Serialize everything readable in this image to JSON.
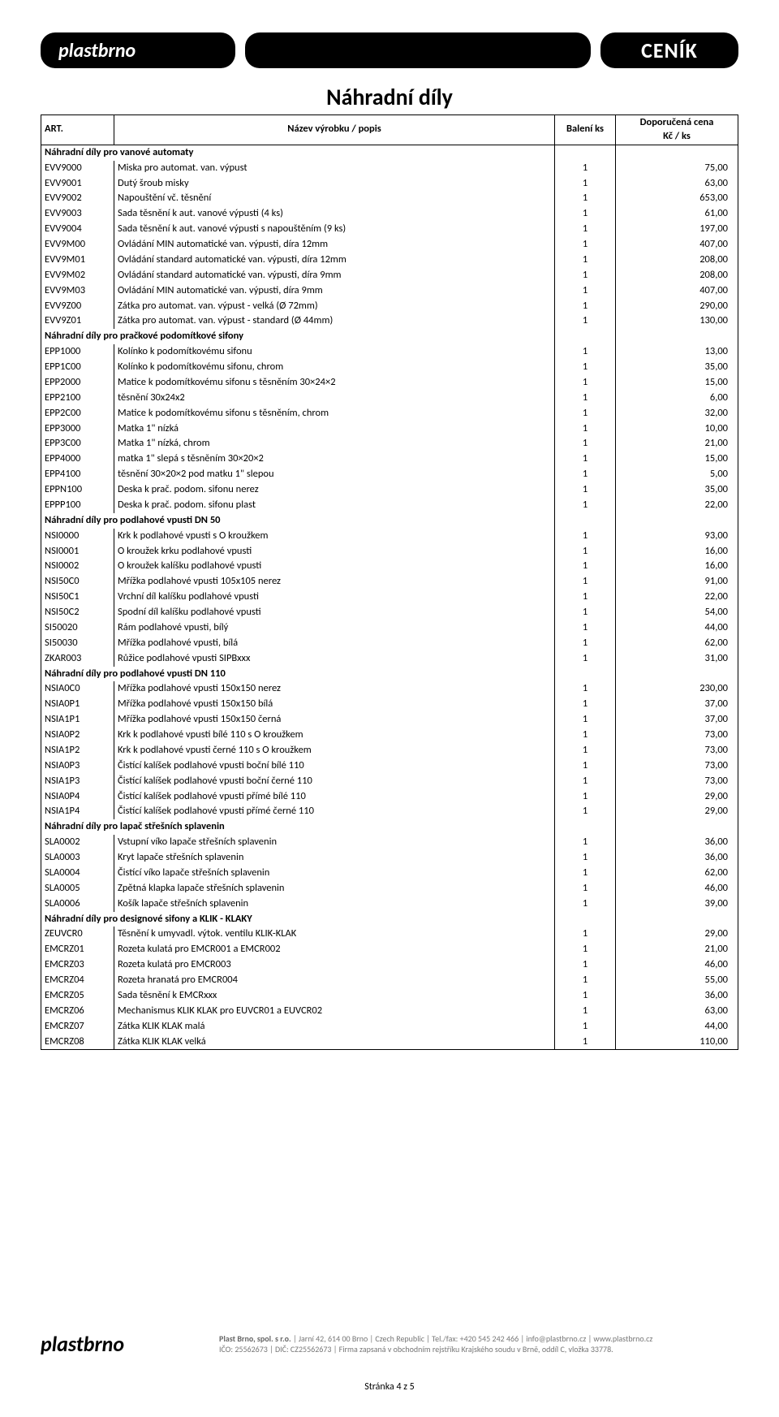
{
  "header": {
    "brand": "plastbrno",
    "badge": "CENÍK"
  },
  "doc_title": "Náhradní díly",
  "columns": {
    "art": "ART.",
    "name": "Název výrobku / popis",
    "pack": "Balení ks",
    "price_l1": "Doporučená cena",
    "price_l2": "Kč / ks"
  },
  "sections": [
    {
      "title": "Náhradní díly pro vanové automaty",
      "rows": [
        {
          "a": "EVV9000",
          "n": "Miska pro automat. van. výpust",
          "p": "1",
          "c": "75,00"
        },
        {
          "a": "EVV9001",
          "n": "Dutý šroub misky",
          "p": "1",
          "c": "63,00"
        },
        {
          "a": "EVV9002",
          "n": "Napouštění vč. těsnění",
          "p": "1",
          "c": "653,00"
        },
        {
          "a": "EVV9003",
          "n": "Sada těsnění k aut. vanové výpusti (4 ks)",
          "p": "1",
          "c": "61,00"
        },
        {
          "a": "EVV9004",
          "n": "Sada těsnění k aut. vanové výpusti s napouštěním (9 ks)",
          "p": "1",
          "c": "197,00"
        },
        {
          "a": "EVV9M00",
          "n": "Ovládání MIN automatické van. výpusti, díra 12mm",
          "p": "1",
          "c": "407,00"
        },
        {
          "a": "EVV9M01",
          "n": "Ovládání standard automatické van. výpusti, díra 12mm",
          "p": "1",
          "c": "208,00"
        },
        {
          "a": "EVV9M02",
          "n": "Ovládání standard automatické van. výpusti, díra 9mm",
          "p": "1",
          "c": "208,00"
        },
        {
          "a": "EVV9M03",
          "n": "Ovládání MIN automatické van. výpusti, díra 9mm",
          "p": "1",
          "c": "407,00"
        },
        {
          "a": "EVV9Z00",
          "n": "Zátka pro automat. van. výpust - velká (Ø 72mm)",
          "p": "1",
          "c": "290,00"
        },
        {
          "a": "EVV9Z01",
          "n": "Zátka pro automat. van. výpust - standard (Ø 44mm)",
          "p": "1",
          "c": "130,00"
        }
      ]
    },
    {
      "title": "Náhradní díly pro pračkové podomítkové sifony",
      "rows": [
        {
          "a": "EPP1000",
          "n": "Kolínko k podomítkovému sifonu",
          "p": "1",
          "c": "13,00"
        },
        {
          "a": "EPP1C00",
          "n": "Kolínko k podomítkovému sifonu, chrom",
          "p": "1",
          "c": "35,00"
        },
        {
          "a": "EPP2000",
          "n": "Matice k podomítkovému sifonu s těsněním 30×24×2",
          "p": "1",
          "c": "15,00"
        },
        {
          "a": "EPP2100",
          "n": "těsnění 30x24x2",
          "p": "1",
          "c": "6,00"
        },
        {
          "a": "EPP2C00",
          "n": "Matice k podomítkovému sifonu s těsněním, chrom",
          "p": "1",
          "c": "32,00"
        },
        {
          "a": "EPP3000",
          "n": "Matka 1\" nízká",
          "p": "1",
          "c": "10,00"
        },
        {
          "a": "EPP3C00",
          "n": "Matka 1\" nízká, chrom",
          "p": "1",
          "c": "21,00"
        },
        {
          "a": "EPP4000",
          "n": "matka 1\" slepá s těsněním 30×20×2",
          "p": "1",
          "c": "15,00"
        },
        {
          "a": "EPP4100",
          "n": "těsnění 30×20×2 pod matku 1\" slepou",
          "p": "1",
          "c": "5,00"
        },
        {
          "a": "EPPN100",
          "n": "Deska k prač. podom. sifonu nerez",
          "p": "1",
          "c": "35,00"
        },
        {
          "a": "EPPP100",
          "n": "Deska k prač. podom. sifonu plast",
          "p": "1",
          "c": "22,00"
        }
      ]
    },
    {
      "title": "Náhradní díly pro podlahové vpusti DN 50",
      "rows": [
        {
          "a": "NSI0000",
          "n": "Krk k podlahové vpusti s O kroužkem",
          "p": "1",
          "c": "93,00"
        },
        {
          "a": "NSI0001",
          "n": "O kroužek krku podlahové vpusti",
          "p": "1",
          "c": "16,00"
        },
        {
          "a": "NSI0002",
          "n": "O kroužek kalíšku podlahové vpusti",
          "p": "1",
          "c": "16,00"
        },
        {
          "a": "NSI50C0",
          "n": "Mřížka podlahové vpusti 105x105 nerez",
          "p": "1",
          "c": "91,00"
        },
        {
          "a": "NSI50C1",
          "n": "Vrchní díl kalíšku podlahové vpusti",
          "p": "1",
          "c": "22,00"
        },
        {
          "a": "NSI50C2",
          "n": "Spodní díl kalíšku podlahové vpusti",
          "p": "1",
          "c": "54,00"
        },
        {
          "a": "SI50020",
          "n": "Rám podlahové vpusti, bílý",
          "p": "1",
          "c": "44,00"
        },
        {
          "a": "SI50030",
          "n": "Mřížka podlahové vpusti, bílá",
          "p": "1",
          "c": "62,00"
        },
        {
          "a": "ZKAR003",
          "n": "Růžice podlahové vpusti SIPBxxx",
          "p": "1",
          "c": "31,00"
        }
      ]
    },
    {
      "title": "Náhradní díly pro podlahové vpusti DN 110",
      "rows": [
        {
          "a": "NSIA0C0",
          "n": "Mřížka podlahové vpusti 150x150 nerez",
          "p": "1",
          "c": "230,00"
        },
        {
          "a": "NSIA0P1",
          "n": "Mřížka podlahové vpusti 150x150 bílá",
          "p": "1",
          "c": "37,00"
        },
        {
          "a": "NSIA1P1",
          "n": "Mřížka podlahové vpusti 150x150 černá",
          "p": "1",
          "c": "37,00"
        },
        {
          "a": "NSIA0P2",
          "n": "Krk k podlahové vpusti bílé 110 s O kroužkem",
          "p": "1",
          "c": "73,00"
        },
        {
          "a": "NSIA1P2",
          "n": "Krk k podlahové vpusti černé 110 s O kroužkem",
          "p": "1",
          "c": "73,00"
        },
        {
          "a": "NSIA0P3",
          "n": "Čistící kalíšek podlahové vpusti boční bílé 110",
          "p": "1",
          "c": "73,00"
        },
        {
          "a": "NSIA1P3",
          "n": "Čistící kalíšek podlahové vpusti boční černé 110",
          "p": "1",
          "c": "73,00"
        },
        {
          "a": "NSIA0P4",
          "n": "Čistící kalíšek podlahové vpusti přímé bílé 110",
          "p": "1",
          "c": "29,00"
        },
        {
          "a": "NSIA1P4",
          "n": "Čistící kalíšek podlahové vpusti přímé černé 110",
          "p": "1",
          "c": "29,00"
        }
      ]
    },
    {
      "title": "Náhradní díly pro lapač střešních splavenin",
      "rows": [
        {
          "a": "SLA0002",
          "n": "Vstupní víko lapače střešních splavenin",
          "p": "1",
          "c": "36,00"
        },
        {
          "a": "SLA0003",
          "n": "Kryt lapače střešních splavenin",
          "p": "1",
          "c": "36,00"
        },
        {
          "a": "SLA0004",
          "n": "Čistící víko lapače střešních splavenin",
          "p": "1",
          "c": "62,00"
        },
        {
          "a": "SLA0005",
          "n": "Zpětná klapka lapače střešních splavenin",
          "p": "1",
          "c": "46,00"
        },
        {
          "a": "SLA0006",
          "n": "Košík lapače střešních splavenin",
          "p": "1",
          "c": "39,00"
        }
      ]
    },
    {
      "title": "Náhradní díly pro designové sifony a KLIK - KLAKY",
      "rows": [
        {
          "a": "ZEUVCR0",
          "n": "Těsnění k umyvadl. výtok. ventilu KLIK-KLAK",
          "p": "1",
          "c": "29,00"
        },
        {
          "a": "EMCRZ01",
          "n": "Rozeta kulatá pro EMCR001 a EMCR002",
          "p": "1",
          "c": "21,00"
        },
        {
          "a": "EMCRZ03",
          "n": "Rozeta kulatá pro EMCR003",
          "p": "1",
          "c": "46,00"
        },
        {
          "a": "EMCRZ04",
          "n": "Rozeta hranatá pro EMCR004",
          "p": "1",
          "c": "55,00"
        },
        {
          "a": "EMCRZ05",
          "n": "Sada těsnění k EMCRxxx",
          "p": "1",
          "c": "36,00"
        },
        {
          "a": "EMCRZ06",
          "n": "Mechanismus KLIK KLAK pro EUVCR01 a EUVCR02",
          "p": "1",
          "c": "63,00"
        },
        {
          "a": "EMCRZ07",
          "n": "Zátka KLIK KLAK malá",
          "p": "1",
          "c": "44,00"
        },
        {
          "a": "EMCRZ08",
          "n": "Zátka KLIK KLAK velká",
          "p": "1",
          "c": "110,00"
        }
      ]
    }
  ],
  "footer": {
    "brand": "plastbrno",
    "company": "Plast Brno, spol. s r.o.",
    "line1_rest": " | Jarní 42, 614 00 Brno | Czech Republic | Tel./fax: +420 545 242 466 | info@plastbrno.cz | www.plastbrno.cz",
    "line2": "IČO: 25562673 | DIČ: CZ25562673 | Firma zapsaná v obchodním rejstříku Krajského soudu v Brně, oddíl C, vložka 33778."
  },
  "page_num": "Stránka 4 z 5"
}
